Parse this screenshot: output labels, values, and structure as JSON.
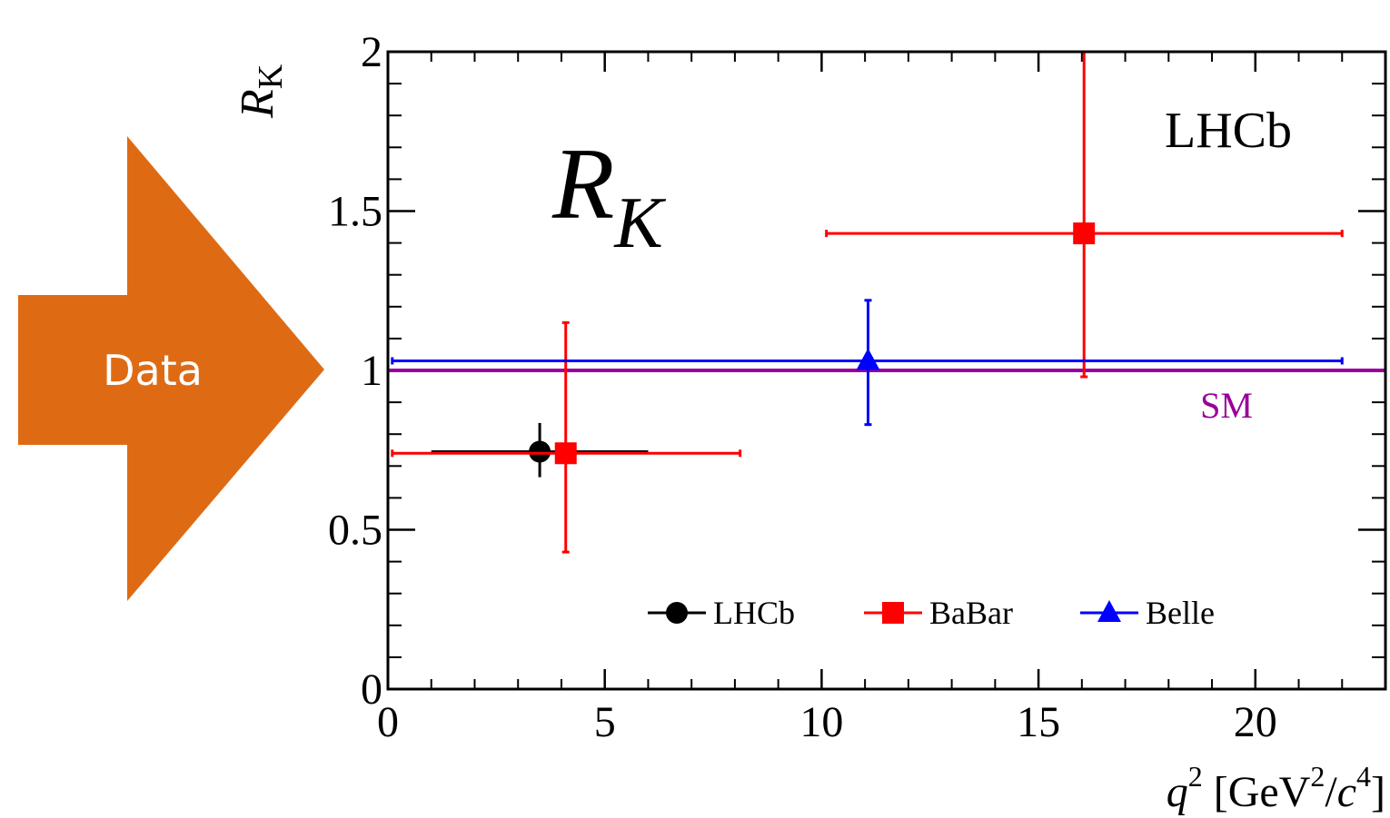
{
  "arrow_text": "Data",
  "chart_data": {
    "type": "errorbar",
    "y_label": [
      "R",
      "K"
    ],
    "x_label": [
      "q",
      "2",
      " [GeV",
      "2",
      "/",
      "c",
      "4",
      "]"
    ],
    "big_label": [
      "R",
      "K"
    ],
    "experiment_label": "LHCb",
    "xlim": [
      0,
      23
    ],
    "ylim": [
      0,
      2
    ],
    "xticks": [
      0,
      5,
      10,
      15,
      20
    ],
    "yticks": [
      0,
      0.5,
      1,
      1.5,
      2
    ],
    "reference_line": {
      "value": 1,
      "label": "SM",
      "color": "#990099"
    },
    "legend": "lower center",
    "series": [
      {
        "name": "LHCb",
        "color": "#000000",
        "marker": "circle",
        "x": [
          3.5
        ],
        "x_lo": [
          1
        ],
        "x_hi": [
          6
        ],
        "values": [
          0.745
        ],
        "err_plus": [
          0.09
        ],
        "err_minus": [
          0.08
        ]
      },
      {
        "name": "BaBar",
        "color": "#ff0000",
        "marker": "square",
        "x": [
          4.1,
          16.05
        ],
        "x_lo": [
          0.1,
          10.11
        ],
        "x_hi": [
          8.12,
          22
        ],
        "values": [
          0.74,
          1.43
        ],
        "err_plus": [
          0.41,
          0.65
        ],
        "err_minus": [
          0.31,
          0.45
        ]
      },
      {
        "name": "Belle",
        "color": "#0000ff",
        "marker": "triangle",
        "x": [
          11.07
        ],
        "x_lo": [
          0.1
        ],
        "x_hi": [
          22
        ],
        "values": [
          1.03
        ],
        "err_plus": [
          0.19
        ],
        "err_minus": [
          0.2
        ]
      }
    ]
  }
}
